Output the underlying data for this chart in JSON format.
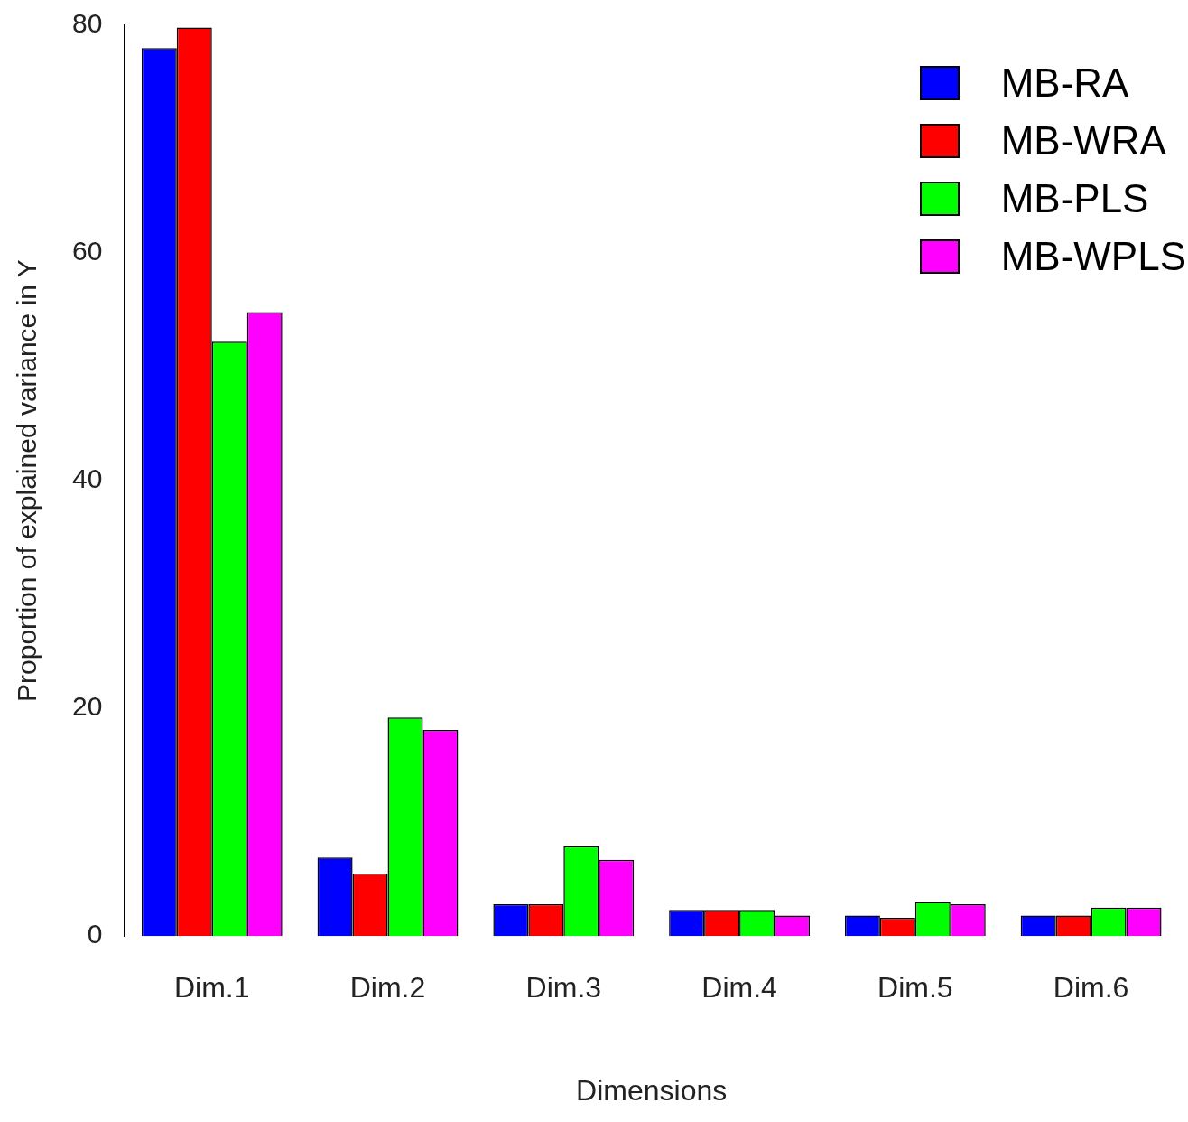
{
  "chart_data": {
    "type": "bar",
    "xlabel": "Dimensions",
    "ylabel": "Proportion of explained variance in Y",
    "categories": [
      "Dim.1",
      "Dim.2",
      "Dim.3",
      "Dim.4",
      "Dim.5",
      "Dim.6"
    ],
    "series": [
      {
        "name": "MB-RA",
        "color": "#0000ff",
        "values": [
          78.0,
          6.9,
          2.8,
          2.3,
          1.8,
          1.8
        ]
      },
      {
        "name": "MB-WRA",
        "color": "#ff0000",
        "values": [
          79.8,
          5.5,
          2.8,
          2.3,
          1.6,
          1.8
        ]
      },
      {
        "name": "MB-PLS",
        "color": "#00ff00",
        "values": [
          52.2,
          19.2,
          7.9,
          2.3,
          3.0,
          2.5
        ]
      },
      {
        "name": "MB-WPLS",
        "color": "#ff00ff",
        "values": [
          54.8,
          18.1,
          6.7,
          1.8,
          2.8,
          2.5
        ]
      }
    ],
    "ylim": [
      0,
      80
    ],
    "yticks": [
      0,
      20,
      40,
      60,
      80
    ],
    "grid": false,
    "legend": "top right"
  }
}
